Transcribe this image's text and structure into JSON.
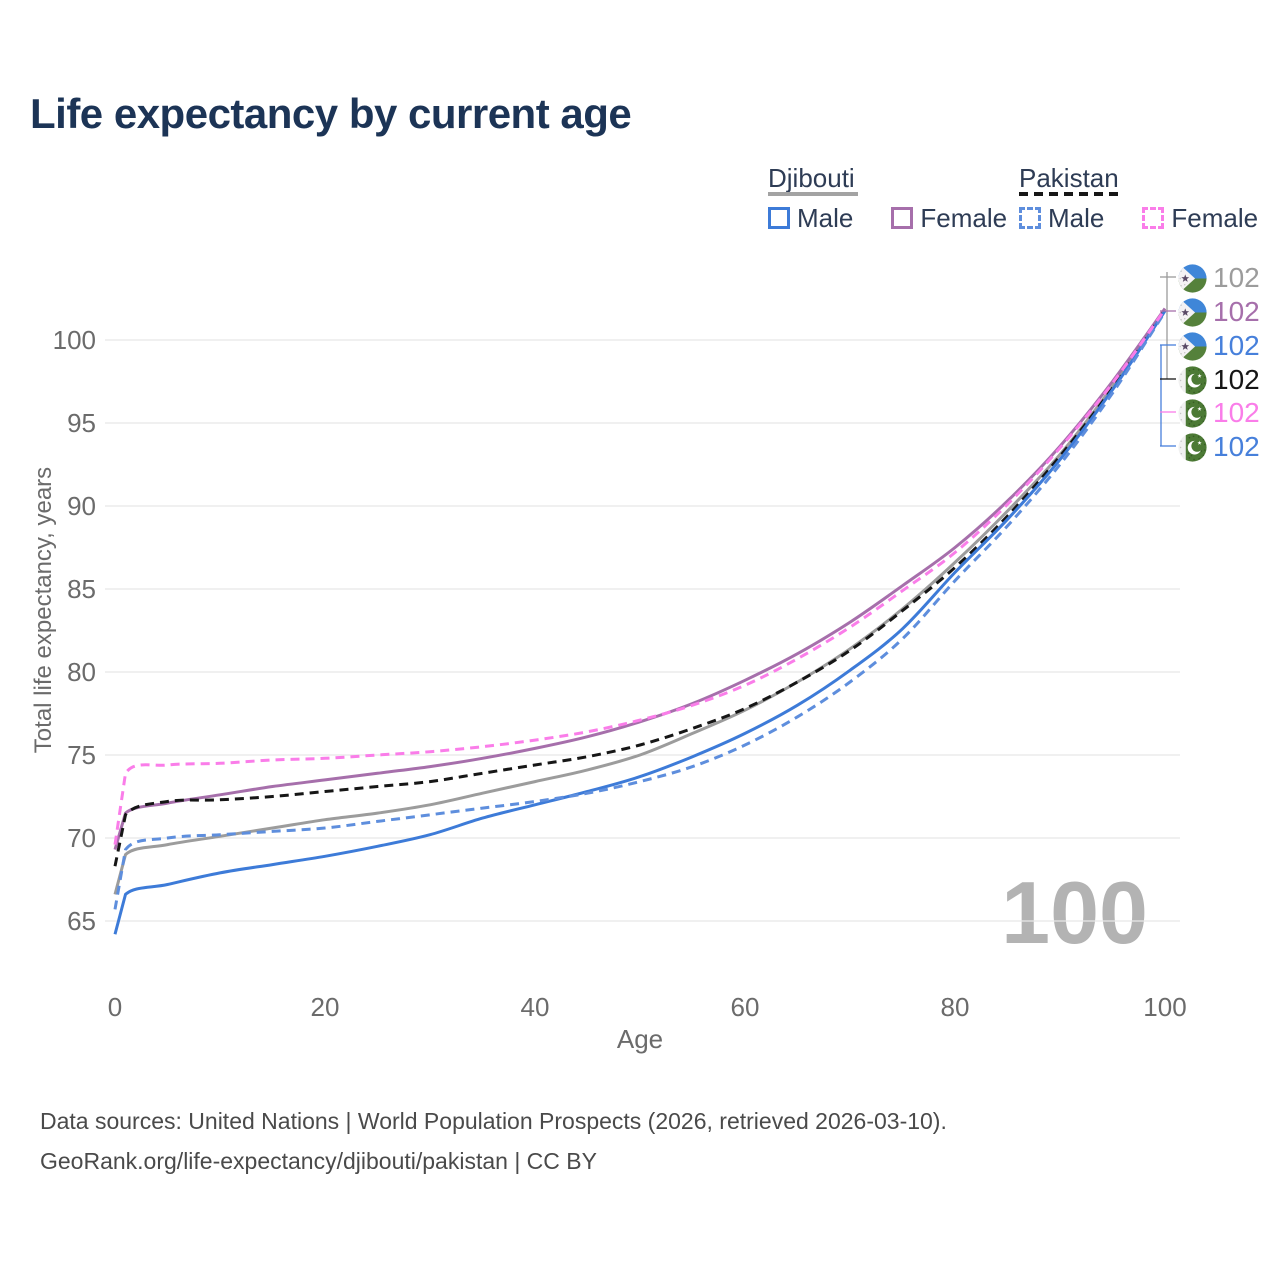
{
  "title": "Life expectancy by current age",
  "legend": {
    "groups": [
      {
        "country": "Djibouti",
        "line_style": "solid",
        "underline_color": "#A3A3A3",
        "items": [
          {
            "label": "Male",
            "color": "#3D7BD8",
            "dashed": false
          },
          {
            "label": "Female",
            "color": "#A66FAB",
            "dashed": false
          }
        ]
      },
      {
        "country": "Pakistan",
        "line_style": "dashed",
        "underline_color": "#161616",
        "items": [
          {
            "label": "Male",
            "color": "#5E8EDD",
            "dashed": true
          },
          {
            "label": "Female",
            "color": "#FA7DE9",
            "dashed": true
          }
        ]
      }
    ]
  },
  "chart_data": {
    "type": "line",
    "xlabel": "Age",
    "ylabel": "Total life expectancy, years",
    "xticks": [
      0,
      20,
      40,
      60,
      80,
      100
    ],
    "yticks": [
      65,
      70,
      75,
      80,
      85,
      90,
      95,
      100
    ],
    "xlim": [
      0,
      100
    ],
    "ylim": [
      63.5,
      103
    ],
    "grid": "horizontal-only",
    "ages": [
      0,
      1,
      5,
      10,
      15,
      20,
      25,
      30,
      35,
      40,
      45,
      50,
      55,
      60,
      65,
      70,
      75,
      80,
      85,
      90,
      95,
      100
    ],
    "series": [
      {
        "name": "Djibouti Total",
        "country": "Djibouti",
        "sex": "Both",
        "color": "#9C9C9C",
        "dashed": false,
        "values": [
          66.6,
          69.0,
          69.6,
          70.1,
          70.6,
          71.1,
          71.5,
          72.0,
          72.7,
          73.4,
          74.1,
          75.0,
          76.3,
          77.7,
          79.4,
          81.4,
          83.8,
          86.6,
          89.7,
          93.1,
          97.2,
          101.8
        ]
      },
      {
        "name": "Djibouti Female",
        "country": "Djibouti",
        "sex": "Female",
        "color": "#A66FAB",
        "dashed": false,
        "values": [
          69.3,
          71.5,
          72.1,
          72.6,
          73.1,
          73.5,
          73.9,
          74.3,
          74.8,
          75.4,
          76.1,
          77.0,
          78.1,
          79.5,
          81.1,
          83.0,
          85.2,
          87.5,
          90.3,
          93.6,
          97.5,
          101.9
        ]
      },
      {
        "name": "Pakistan Total",
        "country": "Pakistan",
        "sex": "Both",
        "color": "#161616",
        "dashed": true,
        "values": [
          68.3,
          71.4,
          72.2,
          72.3,
          72.5,
          72.8,
          73.1,
          73.4,
          73.9,
          74.4,
          74.9,
          75.6,
          76.6,
          77.8,
          79.4,
          81.3,
          83.7,
          86.3,
          89.4,
          93.0,
          97.1,
          101.8
        ]
      },
      {
        "name": "Djibouti Male",
        "country": "Djibouti",
        "sex": "Male",
        "color": "#3D7BD8",
        "dashed": false,
        "values": [
          64.2,
          66.6,
          67.2,
          67.9,
          68.4,
          68.9,
          69.5,
          70.2,
          71.2,
          72.0,
          72.8,
          73.7,
          74.9,
          76.3,
          78.0,
          80.1,
          82.6,
          86.0,
          89.2,
          92.8,
          97.0,
          101.75
        ]
      },
      {
        "name": "Pakistan Male",
        "country": "Pakistan",
        "sex": "Male",
        "color": "#5E8EDD",
        "dashed": true,
        "values": [
          65.7,
          69.3,
          70.0,
          70.2,
          70.4,
          70.6,
          71.0,
          71.4,
          71.8,
          72.2,
          72.7,
          73.4,
          74.3,
          75.6,
          77.3,
          79.4,
          82.0,
          85.5,
          88.8,
          92.5,
          96.8,
          101.7
        ]
      },
      {
        "name": "Pakistan Female",
        "country": "Pakistan",
        "sex": "Female",
        "color": "#FA7DE9",
        "dashed": true,
        "values": [
          69.6,
          73.9,
          74.4,
          74.5,
          74.7,
          74.8,
          75.0,
          75.2,
          75.5,
          75.9,
          76.4,
          77.1,
          78.0,
          79.2,
          80.8,
          82.7,
          84.9,
          87.2,
          90.1,
          93.5,
          97.4,
          101.85
        ]
      }
    ],
    "legend_position": "top-right"
  },
  "end_labels": [
    {
      "value": "102",
      "flag": "djibouti",
      "color": "#9C9C9C"
    },
    {
      "value": "102",
      "flag": "djibouti",
      "color": "#A66FAB"
    },
    {
      "value": "102",
      "flag": "djibouti",
      "color": "#4780DB"
    },
    {
      "value": "102",
      "flag": "pakistan",
      "color": "#161616"
    },
    {
      "value": "102",
      "flag": "pakistan",
      "color": "#FA7DE9"
    },
    {
      "value": "102",
      "flag": "pakistan",
      "color": "#4780DB"
    }
  ],
  "age_indicator": "100",
  "footer": {
    "line1": "Data sources: United Nations | World Population Prospects (2026, retrieved 2026-03-10).",
    "line2": "GeoRank.org/life-expectancy/djibouti/pakistan | CC BY"
  },
  "colors": {
    "title": "#1C3456",
    "grid": "#E7E7E7",
    "tick_text": "#6B6B6B",
    "footer_text": "#4A4A4A",
    "watermark": "#B3B3B3"
  }
}
